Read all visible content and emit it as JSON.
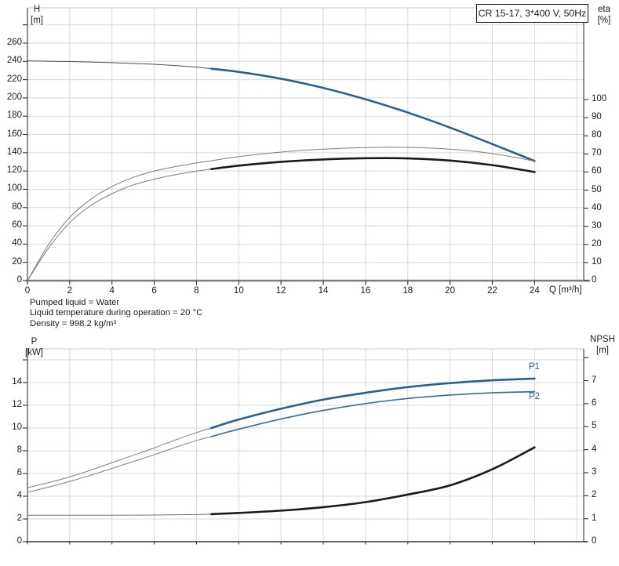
{
  "notes": [
    "Pumped liquid = Water",
    "Liquid temperature during operation = 20 °C",
    "Density = 998.2 kg/m³"
  ],
  "colors": {
    "duty_blue": "#2c6090",
    "p2_blue": "#3c6e99",
    "curve_black": "#1a1a1a",
    "curve_gray": "#7c7c7c",
    "h_thin_gray": "#4d4d4d",
    "grid": "#d9d9d9",
    "border": "#555555",
    "baseline": "#7d7d7d",
    "tick": "#333333",
    "label_blue": "#2a5a80"
  },
  "chart_data": [
    {
      "type": "line",
      "title": "CR 15-17, 3*400 V, 50Hz",
      "x_axis": {
        "label": "Q [m³/h]",
        "ticks": [
          0,
          2,
          4,
          6,
          8,
          10,
          12,
          14,
          16,
          18,
          20,
          22,
          24
        ],
        "grid_step": 2,
        "grid_max": 26
      },
      "left_axis": {
        "name": "H",
        "unit": "[m]",
        "ticks": [
          0,
          20,
          40,
          60,
          80,
          100,
          120,
          140,
          160,
          180,
          200,
          220,
          240,
          260
        ],
        "unlabeled_tick": 280,
        "grid_step": 20,
        "grid_max": 280
      },
      "right_axis": {
        "name": "eta",
        "unit": "[%]",
        "ticks": [
          0,
          10,
          20,
          30,
          40,
          50,
          60,
          70,
          80,
          90,
          100
        ],
        "unlabeled_tick": null
      },
      "duty_range_start_q": 8.7,
      "series": [
        {
          "id": "h-curve",
          "name": "H head curve",
          "axis": "left",
          "split_q": 8.7,
          "color_thin": "#4d4d4d",
          "color_thick": "#2c6090",
          "width_thin": 1,
          "width_thick": 2.6,
          "points": [
            [
              0,
              240.5
            ],
            [
              1,
              240.2
            ],
            [
              2,
              239.8
            ],
            [
              3,
              239.3
            ],
            [
              4,
              238.6
            ],
            [
              5,
              237.8
            ],
            [
              6,
              236.8
            ],
            [
              7,
              235.4
            ],
            [
              8,
              233.8
            ],
            [
              8.7,
              232.0
            ],
            [
              10,
              228.5
            ],
            [
              12,
              221.0
            ],
            [
              14,
              211.0
            ],
            [
              16,
              198.5
            ],
            [
              18,
              184.0
            ],
            [
              20,
              167.5
            ],
            [
              22,
              149.5
            ],
            [
              24,
              131.0
            ]
          ]
        },
        {
          "id": "eta-pump-curve",
          "name": "eta pump",
          "axis": "right",
          "split_q": null,
          "color_thin": "#7c7c7c",
          "width_thin": 1,
          "points": [
            [
              0,
              0
            ],
            [
              1,
              20
            ],
            [
              2,
              35
            ],
            [
              3,
              45
            ],
            [
              4,
              52
            ],
            [
              5,
              57
            ],
            [
              6,
              60.5
            ],
            [
              7,
              63
            ],
            [
              8,
              65
            ],
            [
              8.7,
              66.2
            ],
            [
              10,
              68.5
            ],
            [
              12,
              71.0
            ],
            [
              14,
              72.6
            ],
            [
              16,
              73.5
            ],
            [
              18,
              73.6
            ],
            [
              20,
              72.6
            ],
            [
              22,
              70.2
            ],
            [
              24,
              66.0
            ]
          ]
        },
        {
          "id": "eta-total-curve",
          "name": "eta pump+motor",
          "axis": "right",
          "split_q": 8.7,
          "color_thin": "#7c7c7c",
          "color_thick": "#1a1a1a",
          "width_thin": 1,
          "width_thick": 2.6,
          "points": [
            [
              0,
              0
            ],
            [
              1,
              18
            ],
            [
              2,
              32
            ],
            [
              3,
              41.5
            ],
            [
              4,
              48
            ],
            [
              5,
              52.8
            ],
            [
              6,
              56
            ],
            [
              7,
              58.5
            ],
            [
              8,
              60.5
            ],
            [
              8.7,
              61.6
            ],
            [
              10,
              63.5
            ],
            [
              12,
              65.6
            ],
            [
              14,
              66.9
            ],
            [
              16,
              67.6
            ],
            [
              18,
              67.5
            ],
            [
              20,
              66.3
            ],
            [
              22,
              63.8
            ],
            [
              24,
              60.0
            ]
          ]
        }
      ]
    },
    {
      "type": "line",
      "x_axis": {
        "ticks": [
          0,
          2,
          4,
          6,
          8,
          10,
          12,
          14,
          16,
          18,
          20,
          22,
          24
        ],
        "labels_visible": false,
        "grid_step": 2,
        "grid_max": 26
      },
      "left_axis": {
        "name": "P",
        "unit": "[kW]",
        "ticks": [
          0,
          2,
          4,
          6,
          8,
          10,
          12,
          14
        ],
        "unlabeled_tick": 16,
        "grid_step": 2,
        "grid_max": 16
      },
      "right_axis": {
        "name": "NPSH",
        "unit": "[m]",
        "ticks": [
          0,
          1,
          2,
          3,
          4,
          5,
          6,
          7
        ],
        "unlabeled_tick": 8
      },
      "duty_range_start_q": 8.7,
      "curve_labels": [
        {
          "text": "P1"
        },
        {
          "text": "P2"
        }
      ],
      "series": [
        {
          "id": "p1-curve",
          "name": "P1 input power",
          "axis": "left",
          "split_q": 8.7,
          "color_thin": "#808080",
          "color_thick": "#2c6090",
          "width_thin": 1,
          "width_thick": 2.6,
          "points": [
            [
              0,
              4.75
            ],
            [
              1,
              5.2
            ],
            [
              2,
              5.7
            ],
            [
              3,
              6.3
            ],
            [
              4,
              6.95
            ],
            [
              5,
              7.6
            ],
            [
              6,
              8.25
            ],
            [
              7,
              8.95
            ],
            [
              8,
              9.6
            ],
            [
              8.7,
              10.0
            ],
            [
              10,
              10.75
            ],
            [
              12,
              11.7
            ],
            [
              14,
              12.5
            ],
            [
              16,
              13.1
            ],
            [
              18,
              13.6
            ],
            [
              20,
              13.95
            ],
            [
              22,
              14.2
            ],
            [
              24,
              14.35
            ]
          ]
        },
        {
          "id": "p2-curve",
          "name": "P2 shaft power",
          "axis": "left",
          "split_q": 8.7,
          "color_thin": "#808080",
          "color_thick": "#3c6e99",
          "width_thin": 1,
          "width_thick": 1.7,
          "points": [
            [
              0,
              4.35
            ],
            [
              1,
              4.8
            ],
            [
              2,
              5.3
            ],
            [
              3,
              5.85
            ],
            [
              4,
              6.45
            ],
            [
              5,
              7.05
            ],
            [
              6,
              7.65
            ],
            [
              7,
              8.3
            ],
            [
              8,
              8.9
            ],
            [
              8.7,
              9.25
            ],
            [
              10,
              9.9
            ],
            [
              12,
              10.8
            ],
            [
              14,
              11.55
            ],
            [
              16,
              12.15
            ],
            [
              18,
              12.6
            ],
            [
              20,
              12.9
            ],
            [
              22,
              13.1
            ],
            [
              24,
              13.2
            ]
          ]
        },
        {
          "id": "npsh-curve",
          "name": "NPSH",
          "axis": "right",
          "split_q": 8.7,
          "color_thin": "#6f6f6f",
          "color_thick": "#1a1a1a",
          "width_thin": 1,
          "width_thick": 2.6,
          "points": [
            [
              0,
              1.15
            ],
            [
              2,
              1.15
            ],
            [
              4,
              1.15
            ],
            [
              6,
              1.16
            ],
            [
              8,
              1.18
            ],
            [
              8.7,
              1.2
            ],
            [
              10,
              1.25
            ],
            [
              12,
              1.35
            ],
            [
              14,
              1.5
            ],
            [
              16,
              1.72
            ],
            [
              18,
              2.05
            ],
            [
              20,
              2.45
            ],
            [
              22,
              3.15
            ],
            [
              24,
              4.1
            ]
          ]
        }
      ]
    }
  ]
}
